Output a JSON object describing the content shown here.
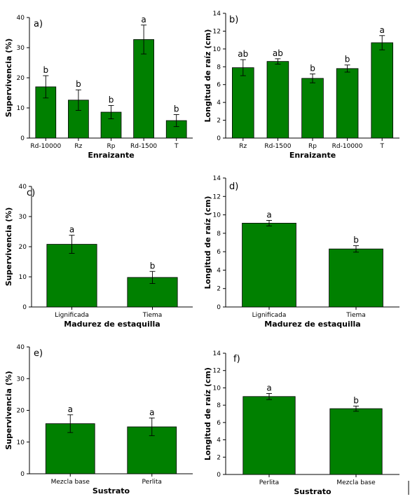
{
  "colors": {
    "bar": "#008000",
    "bar_edge": "#000000",
    "axis": "#000000"
  },
  "chart_data": [
    {
      "panel": "a)",
      "type": "bar",
      "categories": [
        "Rd-10000",
        "Rz",
        "Rp",
        "Rd-1500",
        "T"
      ],
      "values": [
        17,
        12.6,
        8.6,
        32.7,
        5.8
      ],
      "errors": [
        3.7,
        3.4,
        2.2,
        4.8,
        2.0
      ],
      "significance": [
        "b",
        "b",
        "b",
        "a",
        "b"
      ],
      "xlabel": "Enraizante",
      "ylabel": "Supervivencia (%)",
      "ylim": [
        0,
        40
      ],
      "yticks": [
        0,
        10,
        20,
        30,
        40
      ],
      "grid": false
    },
    {
      "panel": "b)",
      "type": "bar",
      "categories": [
        "Rz",
        "Rd-1500",
        "Rp",
        "Rd-10000",
        "T"
      ],
      "values": [
        7.9,
        8.6,
        6.7,
        7.8,
        10.7
      ],
      "errors": [
        0.9,
        0.3,
        0.5,
        0.4,
        0.8
      ],
      "significance": [
        "ab",
        "ab",
        "b",
        "b",
        "a"
      ],
      "xlabel": "Enraizante",
      "ylabel": "Longitud de raíz (cm)",
      "ylim": [
        0,
        14
      ],
      "yticks": [
        0,
        2,
        4,
        6,
        8,
        10,
        12,
        14
      ],
      "grid": false
    },
    {
      "panel": "c)",
      "type": "bar",
      "categories": [
        "Lignificada",
        "Tiema"
      ],
      "values": [
        20.8,
        9.8
      ],
      "errors": [
        3.0,
        2.0
      ],
      "significance": [
        "a",
        "b"
      ],
      "xlabel": "Madurez de estaquilla",
      "ylabel": "Supervivencia (%)",
      "ylim": [
        0,
        40
      ],
      "yticks": [
        0,
        10,
        20,
        30,
        40
      ],
      "grid": false
    },
    {
      "panel": "d)",
      "type": "bar",
      "categories": [
        "Lignificada",
        "Tiema"
      ],
      "values": [
        9.1,
        6.3
      ],
      "errors": [
        0.3,
        0.35
      ],
      "significance": [
        "a",
        "b"
      ],
      "xlabel": "Madurez de estaquilla",
      "ylabel": "Longitud de raíz (cm)",
      "ylim": [
        0,
        14
      ],
      "yticks": [
        0,
        2,
        4,
        6,
        8,
        10,
        12,
        14
      ],
      "grid": false
    },
    {
      "panel": "e)",
      "type": "bar",
      "categories": [
        "Mezcla base",
        "Perlita"
      ],
      "values": [
        15.8,
        14.8
      ],
      "errors": [
        2.8,
        2.8
      ],
      "significance": [
        "a",
        "a"
      ],
      "xlabel": "Sustrato",
      "ylabel": "Supervivencia (%)",
      "ylim": [
        0,
        40
      ],
      "yticks": [
        0,
        10,
        20,
        30,
        40
      ],
      "grid": false
    },
    {
      "panel": "f)",
      "type": "bar",
      "categories": [
        "Perlita",
        "Mezcla base"
      ],
      "values": [
        9.0,
        7.6
      ],
      "errors": [
        0.35,
        0.3
      ],
      "significance": [
        "a",
        "b"
      ],
      "xlabel": "Sustrato",
      "ylabel": "Longitud de raíz (cm)",
      "ylim": [
        0,
        14
      ],
      "yticks": [
        0,
        2,
        4,
        6,
        8,
        10,
        12,
        14
      ],
      "grid": false
    }
  ]
}
